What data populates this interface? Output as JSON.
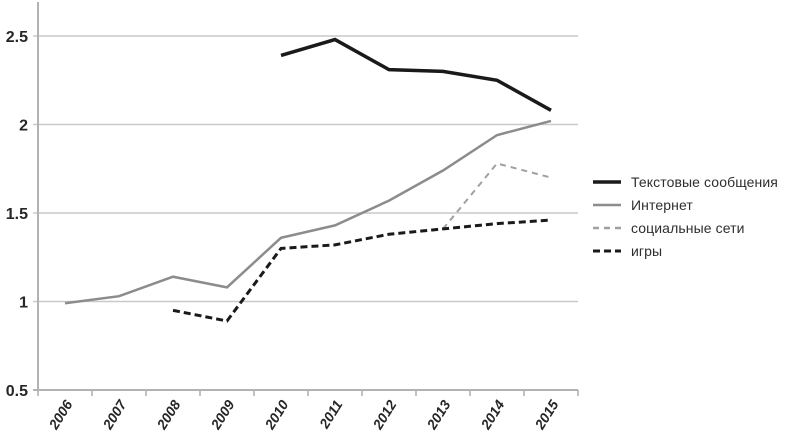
{
  "chart_data": {
    "type": "line",
    "title": "",
    "xlabel": "",
    "ylabel": "",
    "grid": true,
    "legend_position": "right",
    "categories": [
      "2006",
      "2007",
      "2008",
      "2009",
      "2010",
      "2011",
      "2012",
      "2013",
      "2014",
      "2015"
    ],
    "yticks": [
      {
        "v": 2.5,
        "label": "2.5"
      },
      {
        "v": 2,
        "label": "2"
      },
      {
        "v": 1.5,
        "label": "1.5"
      },
      {
        "v": 1,
        "label": "1"
      },
      {
        "v": 0.5,
        "label": "0.5"
      }
    ],
    "ylim": [
      0.5,
      2.7
    ],
    "series": [
      {
        "key": "text-messages",
        "name": "Текстовые сообщения",
        "color": "#1a1a1a",
        "width": 3.5,
        "dash": "",
        "values": [
          null,
          null,
          null,
          null,
          2.39,
          2.48,
          2.31,
          2.3,
          2.25,
          2.08
        ]
      },
      {
        "key": "internet",
        "name": "Интернет",
        "color": "#8c8c8c",
        "width": 2.5,
        "dash": "",
        "values": [
          0.99,
          1.03,
          1.14,
          1.08,
          1.36,
          1.43,
          1.57,
          1.74,
          1.94,
          2.02
        ]
      },
      {
        "key": "social-networks",
        "name": "социальные сети",
        "color": "#a0a0a0",
        "width": 2,
        "dash": "6 5",
        "values": [
          null,
          null,
          null,
          null,
          null,
          null,
          null,
          1.41,
          1.78,
          1.7
        ]
      },
      {
        "key": "games",
        "name": "игры",
        "color": "#1a1a1a",
        "width": 3,
        "dash": "7 4",
        "values": [
          null,
          null,
          0.95,
          0.89,
          1.3,
          1.32,
          1.38,
          1.41,
          1.44,
          1.46
        ]
      }
    ],
    "axis_color": "#b3b3b3",
    "grid_color": "#c9c9c9"
  }
}
